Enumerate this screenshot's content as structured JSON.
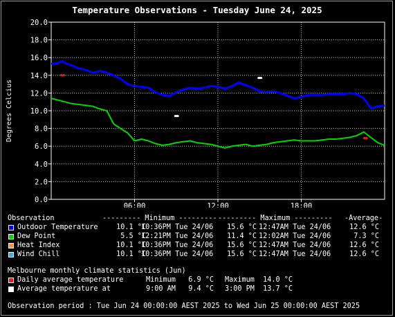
{
  "chart_data": {
    "type": "line",
    "title": "Temperature Observations - Tuesday June 24, 2025",
    "ylabel": "Degrees Celcius",
    "ylim": [
      0,
      20
    ],
    "yticks": [
      "0.0",
      "2.0",
      "4.0",
      "6.0",
      "8.0",
      "10.0",
      "12.0",
      "14.0",
      "16.0",
      "18.0",
      "20.0"
    ],
    "xlim": [
      0,
      24
    ],
    "xticks": [
      {
        "label": "06:00",
        "hour": 6
      },
      {
        "label": "12:00",
        "hour": 12
      },
      {
        "label": "18:00",
        "hour": 18
      }
    ],
    "grid": true,
    "series": [
      {
        "name": "Outdoor Temperature",
        "color": "#0000ff",
        "x": [
          0,
          0.5,
          0.78,
          1,
          1.5,
          2,
          2.5,
          3,
          3.5,
          4,
          4.5,
          5,
          5.5,
          6,
          6.5,
          7,
          7.5,
          8,
          8.5,
          9,
          9.5,
          10,
          10.5,
          11,
          11.5,
          12,
          12.5,
          13,
          13.5,
          14,
          14.5,
          15,
          15.5,
          16,
          16.5,
          17,
          17.5,
          18,
          18.5,
          19,
          19.5,
          20,
          20.5,
          21,
          21.5,
          22,
          22.5,
          23,
          23.5,
          24
        ],
        "values": [
          15.3,
          15.4,
          15.6,
          15.4,
          15.1,
          14.8,
          14.6,
          14.3,
          14.5,
          14.3,
          14.0,
          13.6,
          13.0,
          12.8,
          12.7,
          12.6,
          12.1,
          11.8,
          11.7,
          12.1,
          12.4,
          12.6,
          12.5,
          12.6,
          12.8,
          12.7,
          12.5,
          12.8,
          13.2,
          12.9,
          12.6,
          12.2,
          12.1,
          12.2,
          12.0,
          11.7,
          11.4,
          11.6,
          11.8,
          11.8,
          11.8,
          11.9,
          11.9,
          11.9,
          12.0,
          11.9,
          11.4,
          10.3,
          10.5,
          10.6
        ]
      },
      {
        "name": "Dew Point",
        "color": "#00d800",
        "x": [
          0,
          0.5,
          1,
          1.5,
          2,
          2.5,
          3,
          3.5,
          4,
          4.5,
          5,
          5.5,
          6,
          6.5,
          7,
          7.5,
          8,
          8.5,
          9,
          9.5,
          10,
          10.5,
          11,
          11.5,
          12,
          12.5,
          13,
          13.5,
          14,
          14.5,
          15,
          15.5,
          16,
          16.5,
          17,
          17.5,
          18,
          18.5,
          19,
          19.5,
          20,
          20.5,
          21,
          21.5,
          22,
          22.5,
          23,
          23.5,
          24
        ],
        "values": [
          11.4,
          11.2,
          11.0,
          10.8,
          10.7,
          10.6,
          10.5,
          10.2,
          10.0,
          8.5,
          8.0,
          7.5,
          6.6,
          6.8,
          6.6,
          6.3,
          6.1,
          6.2,
          6.4,
          6.5,
          6.6,
          6.4,
          6.3,
          6.2,
          6.0,
          5.8,
          6.0,
          6.1,
          6.2,
          6.0,
          6.1,
          6.2,
          6.4,
          6.5,
          6.6,
          6.7,
          6.6,
          6.6,
          6.6,
          6.7,
          6.8,
          6.8,
          6.9,
          7.0,
          7.2,
          7.6,
          7.0,
          6.4,
          6.1
        ]
      }
    ],
    "markers": [
      {
        "name": "Daily average temperature max",
        "hour": 0.8,
        "value": 14.0,
        "color": "#e02020"
      },
      {
        "name": "Daily average temperature min",
        "hour": 22.6,
        "value": 6.9,
        "color": "#e02020"
      },
      {
        "name": "Average temperature at 9:00 AM",
        "hour": 9.0,
        "value": 9.4,
        "color": "#ffffff"
      },
      {
        "name": "Average temperature at 3:00 PM",
        "hour": 15.0,
        "value": 13.7,
        "color": "#ffffff"
      }
    ]
  },
  "colors": {
    "background": "#000000",
    "plot_background": "#000000",
    "grid": "#c8c8a0",
    "axis": "#ffffff"
  },
  "legend": {
    "header": [
      "Observation",
      "--------- Minimum ---------",
      "--------- Maximum ---------",
      "-Average-"
    ],
    "rows": [
      {
        "color": "#0000ff",
        "name": "Outdoor Temperature",
        "min": "10.1 °C",
        "min_time": "10:36PM Tue 24/06",
        "max": "15.6 °C",
        "max_time": "12:47AM Tue 24/06",
        "avg": "12.6 °C"
      },
      {
        "color": "#00d800",
        "name": "Dew Point",
        "min": "5.5 °C",
        "min_time": "12:21PM Tue 24/06",
        "max": "11.4 °C",
        "max_time": "12:02AM Tue 24/06",
        "avg": "7.3 °C"
      },
      {
        "color": "#ff8c3a",
        "name": "Heat Index",
        "min": "10.1 °C",
        "min_time": "10:36PM Tue 24/06",
        "max": "15.6 °C",
        "max_time": "12:47AM Tue 24/06",
        "avg": "12.6 °C"
      },
      {
        "color": "#3fa8e8",
        "name": "Wind Chill",
        "min": "10.1 °C",
        "min_time": "10:36PM Tue 24/06",
        "max": "15.6 °C",
        "max_time": "12:47AM Tue 24/06",
        "avg": "12.6 °C"
      }
    ],
    "climate_title": "Melbourne monthly climate statistics (Jun)",
    "climate_rows": [
      {
        "color": "#e02020",
        "name": "Daily average temperature",
        "c1": "Minimum",
        "c2": "6.9 °C",
        "c3": "Maximum",
        "c4": "14.0 °C"
      },
      {
        "color": "#ffffff",
        "name": "Average temperature at",
        "c1": "9:00 AM",
        "c2": "9.4 °C",
        "c3": "3:00 PM",
        "c4": "13.7 °C"
      }
    ],
    "period": "Observation period : Tue Jun 24 00:00:00 AEST 2025 to Wed Jun 25 00:00:00 AEST 2025"
  }
}
